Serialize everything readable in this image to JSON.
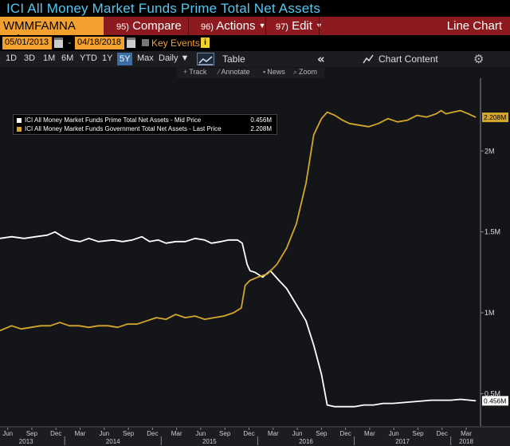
{
  "window": {
    "title": "ICI All Money Market Funds Prime Total Net Assets"
  },
  "command_bar": {
    "ticker": "WMMFAMNA Index",
    "compare_num": "95)",
    "compare_label": "Compare",
    "actions_num": "96)",
    "actions_label": "Actions",
    "edit_num": "97)",
    "edit_label": "Edit",
    "chart_type": "Line Chart"
  },
  "date_row": {
    "start_date": "05/01/2013",
    "end_date": "04/18/2018",
    "dash": "-",
    "key_events": "Key Events",
    "info": "i"
  },
  "range_bar": {
    "ranges": [
      "1D",
      "3D",
      "1M",
      "6M",
      "YTD",
      "1Y",
      "5Y",
      "Max"
    ],
    "selected": "5Y",
    "frequency": "Daily",
    "table_label": "Table",
    "chart_content_label": "Chart Content"
  },
  "toolbar": {
    "track": "Track",
    "annotate": "Annotate",
    "news": "News",
    "zoom": "Zoom"
  },
  "colors": {
    "prime": "#ffffff",
    "government": "#d4a72c",
    "accent": "#f2a12e",
    "title": "#55c8f0",
    "command_bar": "#8c1a1f"
  },
  "chart_data": {
    "type": "line",
    "title": "ICI All Money Market Funds Prime Total Net Assets",
    "legend_position": "top-left",
    "ylim": [
      0.3,
      2.45
    ],
    "y_unit": "M",
    "y_ticks": [
      {
        "value": 0.5,
        "label": "0.5M"
      },
      {
        "value": 1.0,
        "label": "1M"
      },
      {
        "value": 1.5,
        "label": "1.5M"
      },
      {
        "value": 2.0,
        "label": "2M"
      }
    ],
    "x_months": [
      {
        "label": "Jun",
        "t": 2013.41
      },
      {
        "label": "Sep",
        "t": 2013.66
      },
      {
        "label": "Dec",
        "t": 2013.91
      },
      {
        "label": "Mar",
        "t": 2014.16
      },
      {
        "label": "Jun",
        "t": 2014.41
      },
      {
        "label": "Sep",
        "t": 2014.66
      },
      {
        "label": "Dec",
        "t": 2014.91
      },
      {
        "label": "Mar",
        "t": 2015.16
      },
      {
        "label": "Jun",
        "t": 2015.41
      },
      {
        "label": "Sep",
        "t": 2015.66
      },
      {
        "label": "Dec",
        "t": 2015.91
      },
      {
        "label": "Mar",
        "t": 2016.16
      },
      {
        "label": "Jun",
        "t": 2016.41
      },
      {
        "label": "Sep",
        "t": 2016.66
      },
      {
        "label": "Dec",
        "t": 2016.91
      },
      {
        "label": "Mar",
        "t": 2017.16
      },
      {
        "label": "Jun",
        "t": 2017.41
      },
      {
        "label": "Sep",
        "t": 2017.66
      },
      {
        "label": "Dec",
        "t": 2017.91
      },
      {
        "label": "Mar",
        "t": 2018.16
      }
    ],
    "x_years": [
      {
        "label": "2013",
        "t": 2013.6
      },
      {
        "label": "2014",
        "t": 2014.5
      },
      {
        "label": "2015",
        "t": 2015.5
      },
      {
        "label": "2016",
        "t": 2016.5
      },
      {
        "label": "2017",
        "t": 2017.5
      },
      {
        "label": "2018",
        "t": 2018.16
      }
    ],
    "year_boundaries": [
      2014.0,
      2015.0,
      2016.0,
      2017.0,
      2018.0
    ],
    "xlim": [
      2013.33,
      2018.3
    ],
    "series": [
      {
        "name": "ICI All Money Market Funds Prime Total Net Assets - Mid Price",
        "legend_value": "0.456M",
        "last_label": "0.456M",
        "color": "#ffffff",
        "points": [
          [
            2013.33,
            1.46
          ],
          [
            2013.45,
            1.47
          ],
          [
            2013.58,
            1.46
          ],
          [
            2013.7,
            1.47
          ],
          [
            2013.82,
            1.48
          ],
          [
            2013.9,
            1.5
          ],
          [
            2013.98,
            1.47
          ],
          [
            2014.06,
            1.45
          ],
          [
            2014.16,
            1.44
          ],
          [
            2014.25,
            1.46
          ],
          [
            2014.35,
            1.44
          ],
          [
            2014.5,
            1.45
          ],
          [
            2014.6,
            1.44
          ],
          [
            2014.7,
            1.45
          ],
          [
            2014.8,
            1.47
          ],
          [
            2014.88,
            1.44
          ],
          [
            2014.97,
            1.45
          ],
          [
            2015.05,
            1.43
          ],
          [
            2015.15,
            1.44
          ],
          [
            2015.25,
            1.44
          ],
          [
            2015.35,
            1.46
          ],
          [
            2015.45,
            1.45
          ],
          [
            2015.52,
            1.43
          ],
          [
            2015.62,
            1.44
          ],
          [
            2015.7,
            1.45
          ],
          [
            2015.79,
            1.45
          ],
          [
            2015.84,
            1.43
          ],
          [
            2015.89,
            1.3
          ],
          [
            2015.92,
            1.26
          ],
          [
            2015.97,
            1.25
          ],
          [
            2016.05,
            1.22
          ],
          [
            2016.13,
            1.26
          ],
          [
            2016.22,
            1.2
          ],
          [
            2016.3,
            1.15
          ],
          [
            2016.4,
            1.05
          ],
          [
            2016.5,
            0.95
          ],
          [
            2016.58,
            0.8
          ],
          [
            2016.66,
            0.62
          ],
          [
            2016.72,
            0.43
          ],
          [
            2016.8,
            0.42
          ],
          [
            2016.9,
            0.42
          ],
          [
            2017.0,
            0.42
          ],
          [
            2017.1,
            0.43
          ],
          [
            2017.2,
            0.43
          ],
          [
            2017.3,
            0.44
          ],
          [
            2017.4,
            0.44
          ],
          [
            2017.5,
            0.445
          ],
          [
            2017.6,
            0.45
          ],
          [
            2017.7,
            0.455
          ],
          [
            2017.8,
            0.46
          ],
          [
            2017.9,
            0.46
          ],
          [
            2018.0,
            0.46
          ],
          [
            2018.1,
            0.465
          ],
          [
            2018.2,
            0.46
          ],
          [
            2018.26,
            0.456
          ]
        ]
      },
      {
        "name": "ICI All Money Market Funds Government Total Net Assets - Last Price",
        "legend_value": "2.208M",
        "last_label": "2.208M",
        "color": "#d4a72c",
        "points": [
          [
            2013.33,
            0.89
          ],
          [
            2013.45,
            0.92
          ],
          [
            2013.55,
            0.9
          ],
          [
            2013.65,
            0.91
          ],
          [
            2013.75,
            0.92
          ],
          [
            2013.85,
            0.92
          ],
          [
            2013.95,
            0.94
          ],
          [
            2014.05,
            0.92
          ],
          [
            2014.15,
            0.92
          ],
          [
            2014.25,
            0.91
          ],
          [
            2014.35,
            0.92
          ],
          [
            2014.45,
            0.92
          ],
          [
            2014.55,
            0.91
          ],
          [
            2014.65,
            0.93
          ],
          [
            2014.75,
            0.93
          ],
          [
            2014.85,
            0.95
          ],
          [
            2014.95,
            0.97
          ],
          [
            2015.05,
            0.96
          ],
          [
            2015.15,
            0.99
          ],
          [
            2015.25,
            0.97
          ],
          [
            2015.35,
            0.98
          ],
          [
            2015.45,
            0.96
          ],
          [
            2015.55,
            0.97
          ],
          [
            2015.65,
            0.98
          ],
          [
            2015.75,
            1.0
          ],
          [
            2015.83,
            1.03
          ],
          [
            2015.87,
            1.17
          ],
          [
            2015.92,
            1.2
          ],
          [
            2016.0,
            1.22
          ],
          [
            2016.1,
            1.24
          ],
          [
            2016.2,
            1.3
          ],
          [
            2016.3,
            1.4
          ],
          [
            2016.4,
            1.55
          ],
          [
            2016.5,
            1.8
          ],
          [
            2016.58,
            2.1
          ],
          [
            2016.66,
            2.2
          ],
          [
            2016.72,
            2.24
          ],
          [
            2016.8,
            2.22
          ],
          [
            2016.88,
            2.19
          ],
          [
            2016.95,
            2.17
          ],
          [
            2017.05,
            2.16
          ],
          [
            2017.15,
            2.15
          ],
          [
            2017.25,
            2.17
          ],
          [
            2017.35,
            2.2
          ],
          [
            2017.45,
            2.18
          ],
          [
            2017.55,
            2.19
          ],
          [
            2017.65,
            2.22
          ],
          [
            2017.75,
            2.21
          ],
          [
            2017.85,
            2.23
          ],
          [
            2017.9,
            2.25
          ],
          [
            2017.95,
            2.23
          ],
          [
            2018.02,
            2.24
          ],
          [
            2018.1,
            2.25
          ],
          [
            2018.18,
            2.23
          ],
          [
            2018.26,
            2.208
          ]
        ]
      }
    ]
  }
}
